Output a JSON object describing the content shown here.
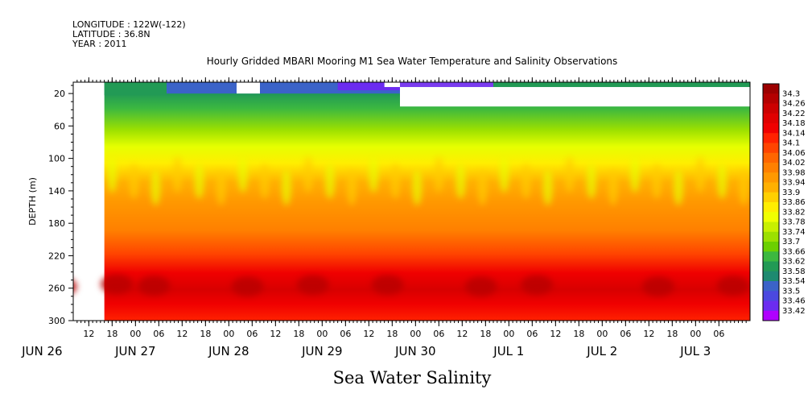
{
  "header": {
    "longitude": "LONGITUDE : 122W(-122)",
    "latitude": "LATITUDE : 36.8N",
    "year": "YEAR : 2011"
  },
  "chart_data": {
    "type": "heatmap",
    "title": "Hourly Gridded MBARI Mooring M1 Sea Water Temperature and Salinity Observations",
    "xlabel": "Sea Water Salinity",
    "ylabel": "DEPTH (m)",
    "yticks": [
      20,
      60,
      100,
      140,
      180,
      220,
      260,
      300
    ],
    "ylim": [
      300,
      6
    ],
    "xtick_hours": [
      "12",
      "18",
      "00",
      "06",
      "12",
      "18",
      "00",
      "06",
      "12",
      "18",
      "00",
      "06",
      "12",
      "18",
      "00",
      "06",
      "12",
      "18",
      "00",
      "06",
      "12",
      "18",
      "00",
      "06",
      "12",
      "18",
      "00",
      "06"
    ],
    "xdate_labels": [
      "JUN 26",
      "JUN 27",
      "JUN 28",
      "JUN 29",
      "JUN 30",
      "JUL  1",
      "JUL  2",
      "JUL  3"
    ],
    "xlim": [
      "2011-06-26T08:00",
      "2011-07-03T14:00"
    ],
    "colorbar": {
      "levels": [
        34.3,
        34.26,
        34.22,
        34.18,
        34.14,
        34.1,
        34.06,
        34.02,
        33.98,
        33.94,
        33.9,
        33.86,
        33.82,
        33.78,
        33.74,
        33.7,
        33.66,
        33.62,
        33.58,
        33.54,
        33.5,
        33.46,
        33.42
      ],
      "colors": [
        "#9c0000",
        "#b40000",
        "#cc0000",
        "#e00000",
        "#f00000",
        "#ff2200",
        "#ff4400",
        "#ff6600",
        "#ff8000",
        "#ff9900",
        "#ffb000",
        "#ffd000",
        "#ffee00",
        "#f0ff00",
        "#c8f000",
        "#9ce000",
        "#6cd000",
        "#3cb840",
        "#229a55",
        "#1e8a70",
        "#3b63c8",
        "#4b48e0",
        "#6b2cf0",
        "#b000ff"
      ]
    },
    "grid": false,
    "legend": "right"
  }
}
